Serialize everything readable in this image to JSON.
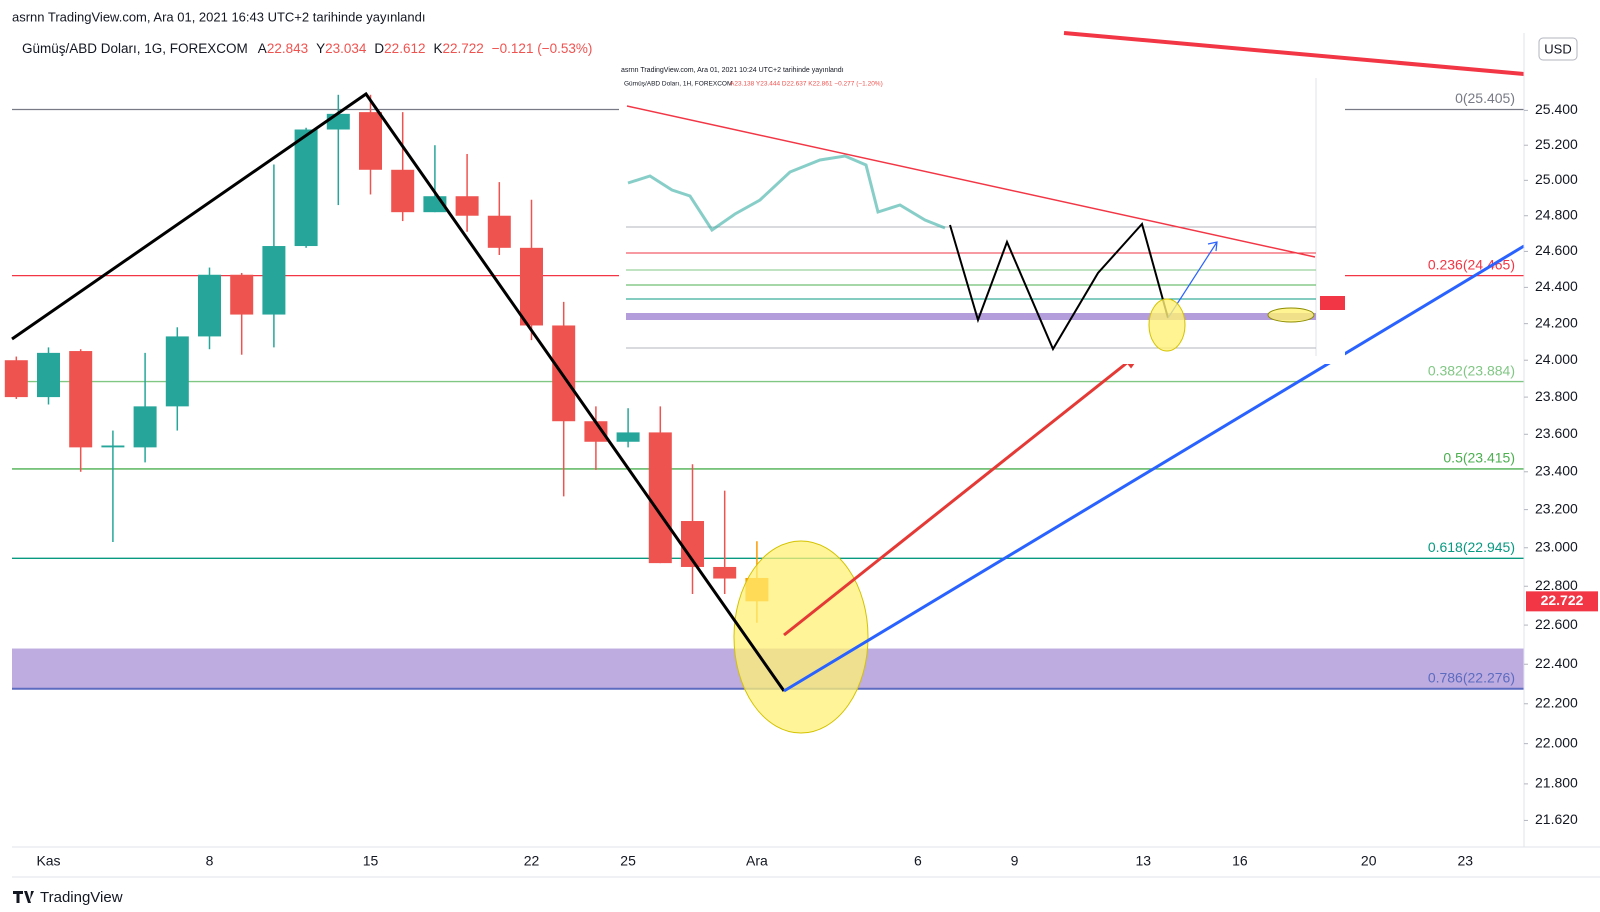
{
  "chart_data": {
    "type": "candlestick",
    "title": "asrnn TradingView.com, Ara 01, 2021 16:43 UTC+2 tarihinde yayınlandı",
    "symbol": "Gümüş/ABD Doları, 1G, FOREXCOM",
    "ohlc_prefixes": [
      "A",
      "Y",
      "D",
      "K"
    ],
    "change": "−0.121 (−0.53%)",
    "currency": "USD",
    "categories": [
      null,
      "Kas",
      null,
      null,
      null,
      null,
      "8",
      null,
      null,
      null,
      null,
      "15",
      null,
      null,
      null,
      null,
      "22",
      null,
      null,
      "25",
      null,
      null,
      null,
      "Ara",
      null,
      null,
      null,
      null,
      "6",
      null,
      null,
      "9",
      null,
      null,
      null,
      "13",
      null,
      null,
      "16",
      null,
      null,
      null,
      "20",
      null,
      null,
      "23",
      null
    ],
    "open": [
      24.0,
      23.8,
      24.05,
      23.53,
      23.53,
      23.75,
      24.13,
      24.47,
      24.25,
      24.63,
      25.29,
      25.39,
      25.06,
      24.82,
      24.91,
      24.8,
      24.62,
      24.19,
      23.67,
      23.56,
      23.61,
      23.14,
      22.9,
      22.843,
      null,
      null,
      null,
      null,
      null,
      null,
      null,
      null,
      null,
      null,
      null,
      null,
      null,
      null,
      null,
      null,
      null,
      null,
      null,
      null,
      null,
      null,
      null
    ],
    "high": [
      24.02,
      24.07,
      24.06,
      23.62,
      24.04,
      24.18,
      24.51,
      24.48,
      25.09,
      25.3,
      25.49,
      25.49,
      25.39,
      25.2,
      25.15,
      24.99,
      24.89,
      24.32,
      23.75,
      23.74,
      23.75,
      23.44,
      23.3,
      23.034,
      null,
      null,
      null,
      null,
      null,
      null,
      null,
      null,
      null,
      null,
      null,
      null,
      null,
      null,
      null,
      null,
      null,
      null,
      null,
      null,
      null,
      null,
      null
    ],
    "low": [
      23.79,
      23.76,
      23.4,
      23.03,
      23.45,
      23.62,
      24.06,
      24.03,
      24.07,
      24.62,
      24.86,
      24.92,
      24.77,
      24.82,
      24.71,
      24.58,
      24.11,
      23.27,
      23.41,
      23.53,
      22.92,
      22.76,
      22.76,
      22.612,
      null,
      null,
      null,
      null,
      null,
      null,
      null,
      null,
      null,
      null,
      null,
      null,
      null,
      null,
      null,
      null,
      null,
      null,
      null,
      null,
      null,
      null,
      null
    ],
    "close": [
      23.8,
      24.04,
      23.53,
      23.54,
      23.75,
      24.13,
      24.47,
      24.25,
      24.63,
      25.29,
      25.38,
      25.06,
      24.82,
      24.91,
      24.8,
      24.62,
      24.19,
      23.67,
      23.56,
      23.61,
      22.92,
      22.9,
      22.84,
      22.722,
      null,
      null,
      null,
      null,
      null,
      null,
      null,
      null,
      null,
      null,
      null,
      null,
      null,
      null,
      null,
      null,
      null,
      null,
      null,
      null,
      null,
      null,
      null
    ],
    "colors": [
      "#ef5350",
      "#26a69a",
      "#ef5350",
      "#26a69a",
      "#26a69a",
      "#26a69a",
      "#26a69a",
      "#ef5350",
      "#26a69a",
      "#26a69a",
      "#26a69a",
      "#ef5350",
      "#ef5350",
      "#26a69a",
      "#ef5350",
      "#ef5350",
      "#ef5350",
      "#ef5350",
      "#ef5350",
      "#26a69a",
      "#ef5350",
      "#ef5350",
      "#ef5350",
      "#ff9800",
      null,
      null,
      null,
      null,
      null,
      null,
      null,
      null,
      null,
      null,
      null,
      null,
      null,
      null,
      null,
      null,
      null,
      null,
      null,
      null,
      null,
      null,
      null
    ],
    "price_box_color": "#f23645",
    "levels": [
      {
        "label": "0(25.405)",
        "value": 25.405,
        "color": "#787b86"
      },
      {
        "label": "0.236(24.465)",
        "value": 24.465,
        "color": "#f23645"
      },
      {
        "label": "0.382(23.884)",
        "value": 23.884,
        "color": "#81c784"
      },
      {
        "label": "0.5(23.415)",
        "value": 23.415,
        "color": "#4caf50"
      },
      {
        "label": "0.618(22.945)",
        "value": 22.945,
        "color": "#089981"
      },
      {
        "label": "0.786(22.276)",
        "value": 22.276,
        "color": "#5c6bc0"
      }
    ],
    "band": {
      "from": 22.276,
      "to": 22.48,
      "color": "#b39ddb"
    },
    "ylim": [
      21.49,
      25.85
    ],
    "yticks": [
      {
        "value": 21.62,
        "label": "21.620"
      },
      {
        "value": 21.8,
        "label": "21.800"
      },
      {
        "value": 22,
        "label": "22.000"
      },
      {
        "value": 22.2,
        "label": "22.200"
      },
      {
        "value": 22.4,
        "label": "22.400"
      },
      {
        "value": 22.6,
        "label": "22.600"
      },
      {
        "value": 22.8,
        "label": "22.800"
      },
      {
        "value": 23,
        "label": "23.000"
      },
      {
        "value": 23.2,
        "label": "23.200"
      },
      {
        "value": 23.4,
        "label": "23.400"
      },
      {
        "value": 23.6,
        "label": "23.600"
      },
      {
        "value": 23.8,
        "label": "23.800"
      },
      {
        "value": 24,
        "label": "24.000"
      },
      {
        "value": 24.2,
        "label": "24.200"
      },
      {
        "value": 24.4,
        "label": "24.400"
      },
      {
        "value": 24.6,
        "label": "24.600"
      },
      {
        "value": 24.8,
        "label": "24.800"
      },
      {
        "value": 25,
        "label": "25.000"
      },
      {
        "value": 25.2,
        "label": "25.200"
      },
      {
        "value": 25.4,
        "label": "25.400"
      }
    ],
    "log_scale": true,
    "grid": false
  },
  "inset": {
    "title": "asrnn TradingView.com, Ara 01, 2021 10:24 UTC+2 tarihinde yayınlandı",
    "symbol": "Gümüş/ABD Doları, 1H, FOREXCOM",
    "ohlc": "A23.138 Y23.444 D22.637 K22.861 −0.277 (−1.20%)"
  },
  "footer": "TradingView"
}
